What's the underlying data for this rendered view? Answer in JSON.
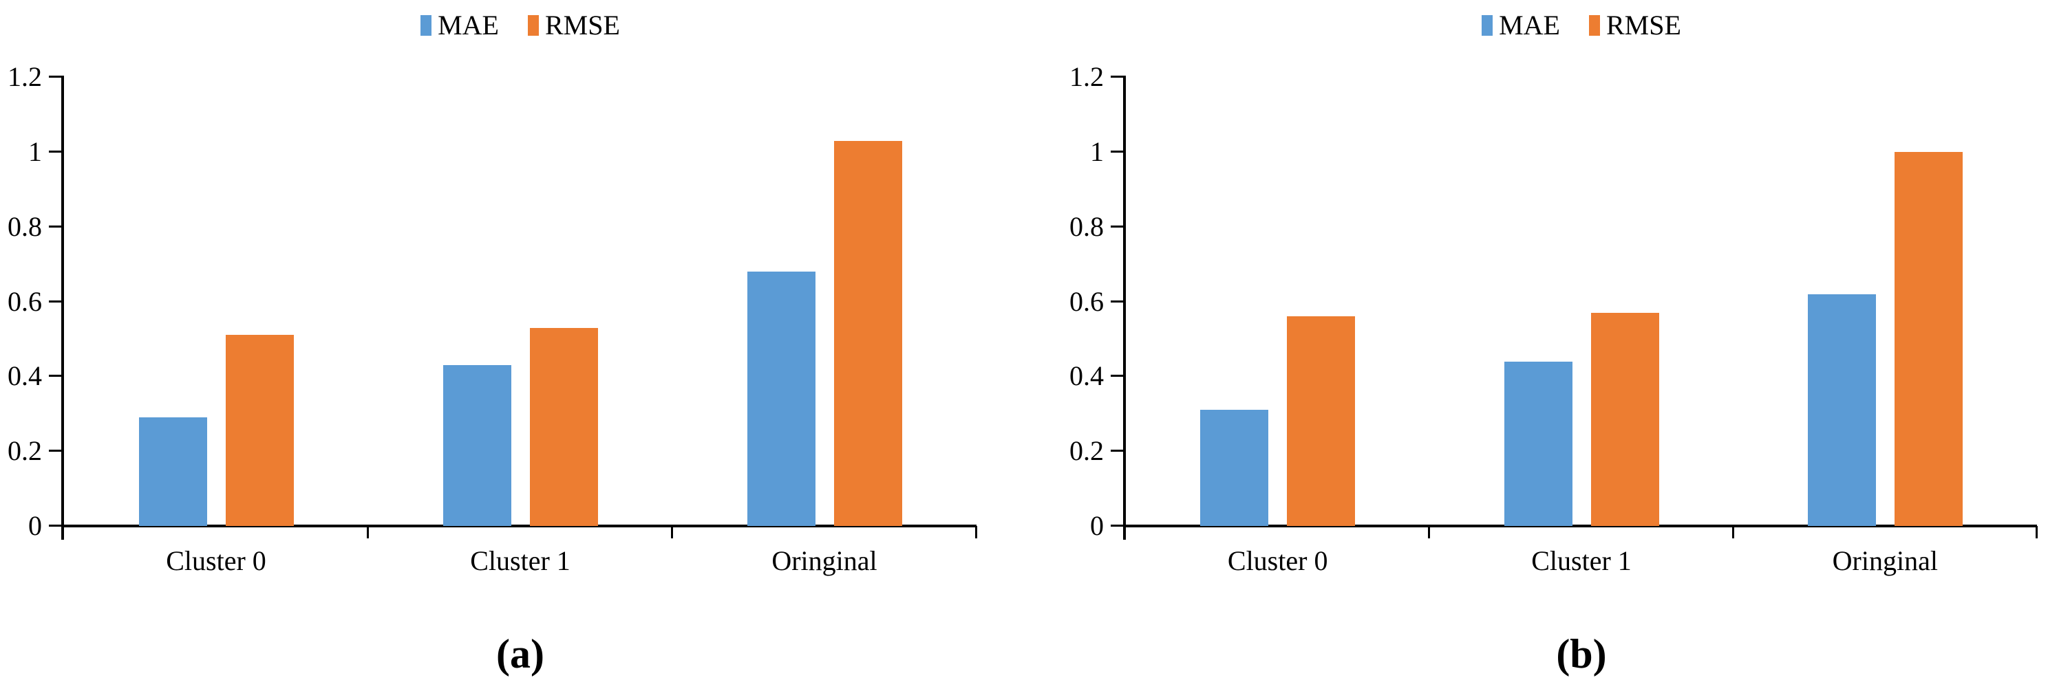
{
  "figure": {
    "panels": [
      {
        "caption": "(a)"
      },
      {
        "caption": "(b)"
      }
    ]
  },
  "legend": {
    "items": [
      "MAE",
      "RMSE"
    ]
  },
  "colors": {
    "mae_blue": "#5B9BD5",
    "rmse_orange": "#ED7D31",
    "axis_black": "#000000"
  },
  "chart_data": [
    {
      "type": "bar",
      "title": "(a)",
      "categories": [
        "Cluster 0",
        "Cluster 1",
        "Oringinal"
      ],
      "series": [
        {
          "name": "MAE",
          "color": "#5B9BD5",
          "values": [
            0.29,
            0.43,
            0.68
          ]
        },
        {
          "name": "RMSE",
          "color": "#ED7D31",
          "values": [
            0.51,
            0.53,
            1.03
          ]
        }
      ],
      "xlabel": "",
      "ylabel": "",
      "ylim": [
        0,
        1.2
      ],
      "yticks": [
        0,
        0.2,
        0.4,
        0.6,
        0.8,
        1,
        1.2
      ],
      "grid": false,
      "legend_position": "top"
    },
    {
      "type": "bar",
      "title": "(b)",
      "categories": [
        "Cluster 0",
        "Cluster 1",
        "Oringinal"
      ],
      "series": [
        {
          "name": "MAE",
          "color": "#5B9BD5",
          "values": [
            0.31,
            0.44,
            0.62
          ]
        },
        {
          "name": "RMSE",
          "color": "#ED7D31",
          "values": [
            0.56,
            0.57,
            1.0
          ]
        }
      ],
      "xlabel": "",
      "ylabel": "",
      "ylim": [
        0,
        1.2
      ],
      "yticks": [
        0,
        0.2,
        0.4,
        0.6,
        0.8,
        1,
        1.2
      ],
      "grid": false,
      "legend_position": "top"
    }
  ]
}
